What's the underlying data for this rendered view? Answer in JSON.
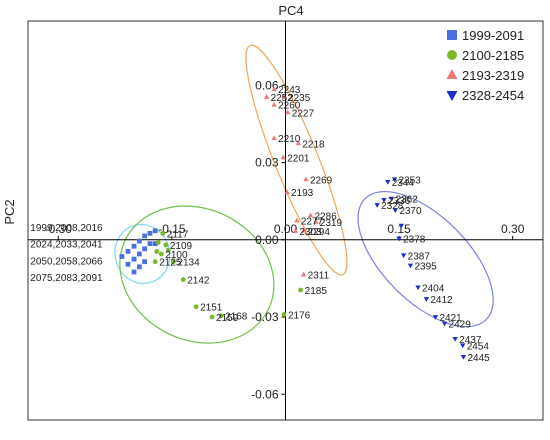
{
  "chart_data": {
    "type": "scatter",
    "title": "",
    "xlabel": "PC4",
    "ylabel": "PC2",
    "xlim": [
      -0.34,
      0.34
    ],
    "ylim": [
      -0.07,
      0.085
    ],
    "x_ticks": [
      {
        "value": -0.3,
        "label": "-0.30"
      },
      {
        "value": -0.15,
        "label": "-0.15"
      },
      {
        "value": 0.0,
        "label": "0.00"
      },
      {
        "value": 0.15,
        "label": "0.15"
      },
      {
        "value": 0.3,
        "label": "0.30"
      }
    ],
    "y_ticks": [
      {
        "value": 0.06,
        "label": "0.06"
      },
      {
        "value": 0.03,
        "label": "0.03"
      },
      {
        "value": 0.0,
        "label": "0.00"
      },
      {
        "value": -0.03,
        "label": "-0.03"
      },
      {
        "value": -0.06,
        "label": "-0.06"
      }
    ],
    "grid": false,
    "legend_position": "top-right",
    "series": [
      {
        "name": "1999-2091",
        "marker": "square",
        "color": "#4a6fe3",
        "points": [
          {
            "x": -0.216,
            "y": -0.0065
          },
          {
            "x": -0.208,
            "y": -0.0045
          },
          {
            "x": -0.208,
            "y": -0.0095
          },
          {
            "x": -0.2,
            "y": -0.0025
          },
          {
            "x": -0.2,
            "y": -0.0075
          },
          {
            "x": -0.2,
            "y": -0.0125
          },
          {
            "x": -0.193,
            "y": -0.0005
          },
          {
            "x": -0.193,
            "y": -0.0055
          },
          {
            "x": -0.193,
            "y": -0.0105
          },
          {
            "x": -0.186,
            "y": 0.0015
          },
          {
            "x": -0.186,
            "y": -0.0035
          },
          {
            "x": -0.186,
            "y": -0.0085
          },
          {
            "x": -0.179,
            "y": 0.0025
          },
          {
            "x": -0.179,
            "y": -0.0015
          },
          {
            "x": -0.172,
            "y": 0.0035
          },
          {
            "x": -0.172,
            "y": -0.0015
          }
        ],
        "labels": [
          {
            "text": "1999,2008,2016",
            "x": -0.337,
            "y": 0.0035
          },
          {
            "text": "2024,2033,2041",
            "x": -0.337,
            "y": -0.003
          },
          {
            "text": "2050,2058,2066",
            "x": -0.337,
            "y": -0.0095
          },
          {
            "text": "2075,2083,2091",
            "x": -0.337,
            "y": -0.016
          }
        ],
        "ellipse": {
          "cx": -0.189,
          "cy": -0.0055,
          "rx": 0.036,
          "ry": 0.0115,
          "rotate_deg": -15,
          "color": "#7fd8f0"
        }
      },
      {
        "name": "2100-2185",
        "marker": "circle",
        "color": "#7ab829",
        "points": [
          {
            "x": -0.172,
            "y": -0.0085,
            "label": "2125"
          },
          {
            "x": -0.17,
            "y": -0.0045
          },
          {
            "x": -0.168,
            "y": -0.001
          },
          {
            "x": -0.164,
            "y": -0.0055,
            "label": "2100"
          },
          {
            "x": -0.162,
            "y": 0.0025,
            "label": "2117"
          },
          {
            "x": -0.158,
            "y": -0.002,
            "label": "2109"
          },
          {
            "x": -0.155,
            "y": -0.004
          },
          {
            "x": -0.148,
            "y": -0.0085,
            "label": "2134"
          },
          {
            "x": -0.135,
            "y": -0.0155,
            "label": "2142"
          },
          {
            "x": -0.118,
            "y": -0.026,
            "label": "2151"
          },
          {
            "x": -0.097,
            "y": -0.03,
            "label": "2159"
          },
          {
            "x": -0.085,
            "y": -0.0295,
            "label": "2168"
          },
          {
            "x": -0.002,
            "y": -0.029,
            "label": "2176"
          },
          {
            "x": 0.02,
            "y": -0.0195,
            "label": "2185"
          }
        ],
        "ellipse": {
          "cx": -0.117,
          "cy": -0.0135,
          "rx": 0.105,
          "ry": 0.0255,
          "rotate_deg": 26,
          "color": "#6fc04a"
        }
      },
      {
        "name": "2193-2319",
        "marker": "triangle-up",
        "color": "#f07878",
        "points": [
          {
            "x": -0.015,
            "y": 0.0585,
            "label": "2243"
          },
          {
            "x": -0.025,
            "y": 0.0555,
            "label": "2252"
          },
          {
            "x": -0.002,
            "y": 0.0555,
            "label": "2235"
          },
          {
            "x": -0.015,
            "y": 0.0525,
            "label": "2260"
          },
          {
            "x": 0.003,
            "y": 0.0495,
            "label": "2227"
          },
          {
            "x": -0.015,
            "y": 0.0395,
            "label": "2210"
          },
          {
            "x": 0.017,
            "y": 0.0375,
            "label": "2218"
          },
          {
            "x": -0.003,
            "y": 0.032,
            "label": "2201"
          },
          {
            "x": 0.027,
            "y": 0.0235,
            "label": "2269"
          },
          {
            "x": 0.002,
            "y": 0.0185,
            "label": "2193"
          },
          {
            "x": 0.015,
            "y": 0.0075,
            "label": "2277"
          },
          {
            "x": 0.033,
            "y": 0.0095,
            "label": "2286"
          },
          {
            "x": 0.04,
            "y": 0.007,
            "label": "2319"
          },
          {
            "x": 0.013,
            "y": 0.0035,
            "label": "2303"
          },
          {
            "x": 0.024,
            "y": 0.0035,
            "label": "2294"
          },
          {
            "x": 0.024,
            "y": -0.0135,
            "label": "2311"
          }
        ],
        "ellipse": {
          "cx": 0.0145,
          "cy": 0.031,
          "rx": 0.0285,
          "ry": 0.048,
          "rotate_deg": -22,
          "color": "#f5a65a"
        }
      },
      {
        "name": "2328-2454",
        "marker": "triangle-down",
        "color": "#1a2fcc",
        "points": [
          {
            "x": 0.135,
            "y": 0.0225,
            "label": "2344"
          },
          {
            "x": 0.144,
            "y": 0.0235,
            "label": "2353"
          },
          {
            "x": 0.121,
            "y": 0.0135,
            "label": "2328"
          },
          {
            "x": 0.13,
            "y": 0.0155,
            "label": "2336"
          },
          {
            "x": 0.14,
            "y": 0.016,
            "label": "2362"
          },
          {
            "x": 0.145,
            "y": 0.0115,
            "label": "2370"
          },
          {
            "x": 0.153,
            "y": 0.0055
          },
          {
            "x": 0.15,
            "y": 0.0005,
            "label": "2378"
          },
          {
            "x": 0.156,
            "y": -0.006,
            "label": "2387"
          },
          {
            "x": 0.165,
            "y": -0.01,
            "label": "2395"
          },
          {
            "x": 0.175,
            "y": -0.0185,
            "label": "2404"
          },
          {
            "x": 0.186,
            "y": -0.023,
            "label": "2412"
          },
          {
            "x": 0.198,
            "y": -0.03,
            "label": "2421"
          },
          {
            "x": 0.21,
            "y": -0.0325,
            "label": "2429"
          },
          {
            "x": 0.224,
            "y": -0.0385,
            "label": "2437"
          },
          {
            "x": 0.234,
            "y": -0.041,
            "label": "2454"
          },
          {
            "x": 0.235,
            "y": -0.0455,
            "label": "2445"
          }
        ],
        "ellipse": {
          "cx": 0.185,
          "cy": -0.0075,
          "rx": 0.113,
          "ry": 0.0165,
          "rotate_deg": 45,
          "color": "#7a82e0"
        }
      }
    ]
  }
}
